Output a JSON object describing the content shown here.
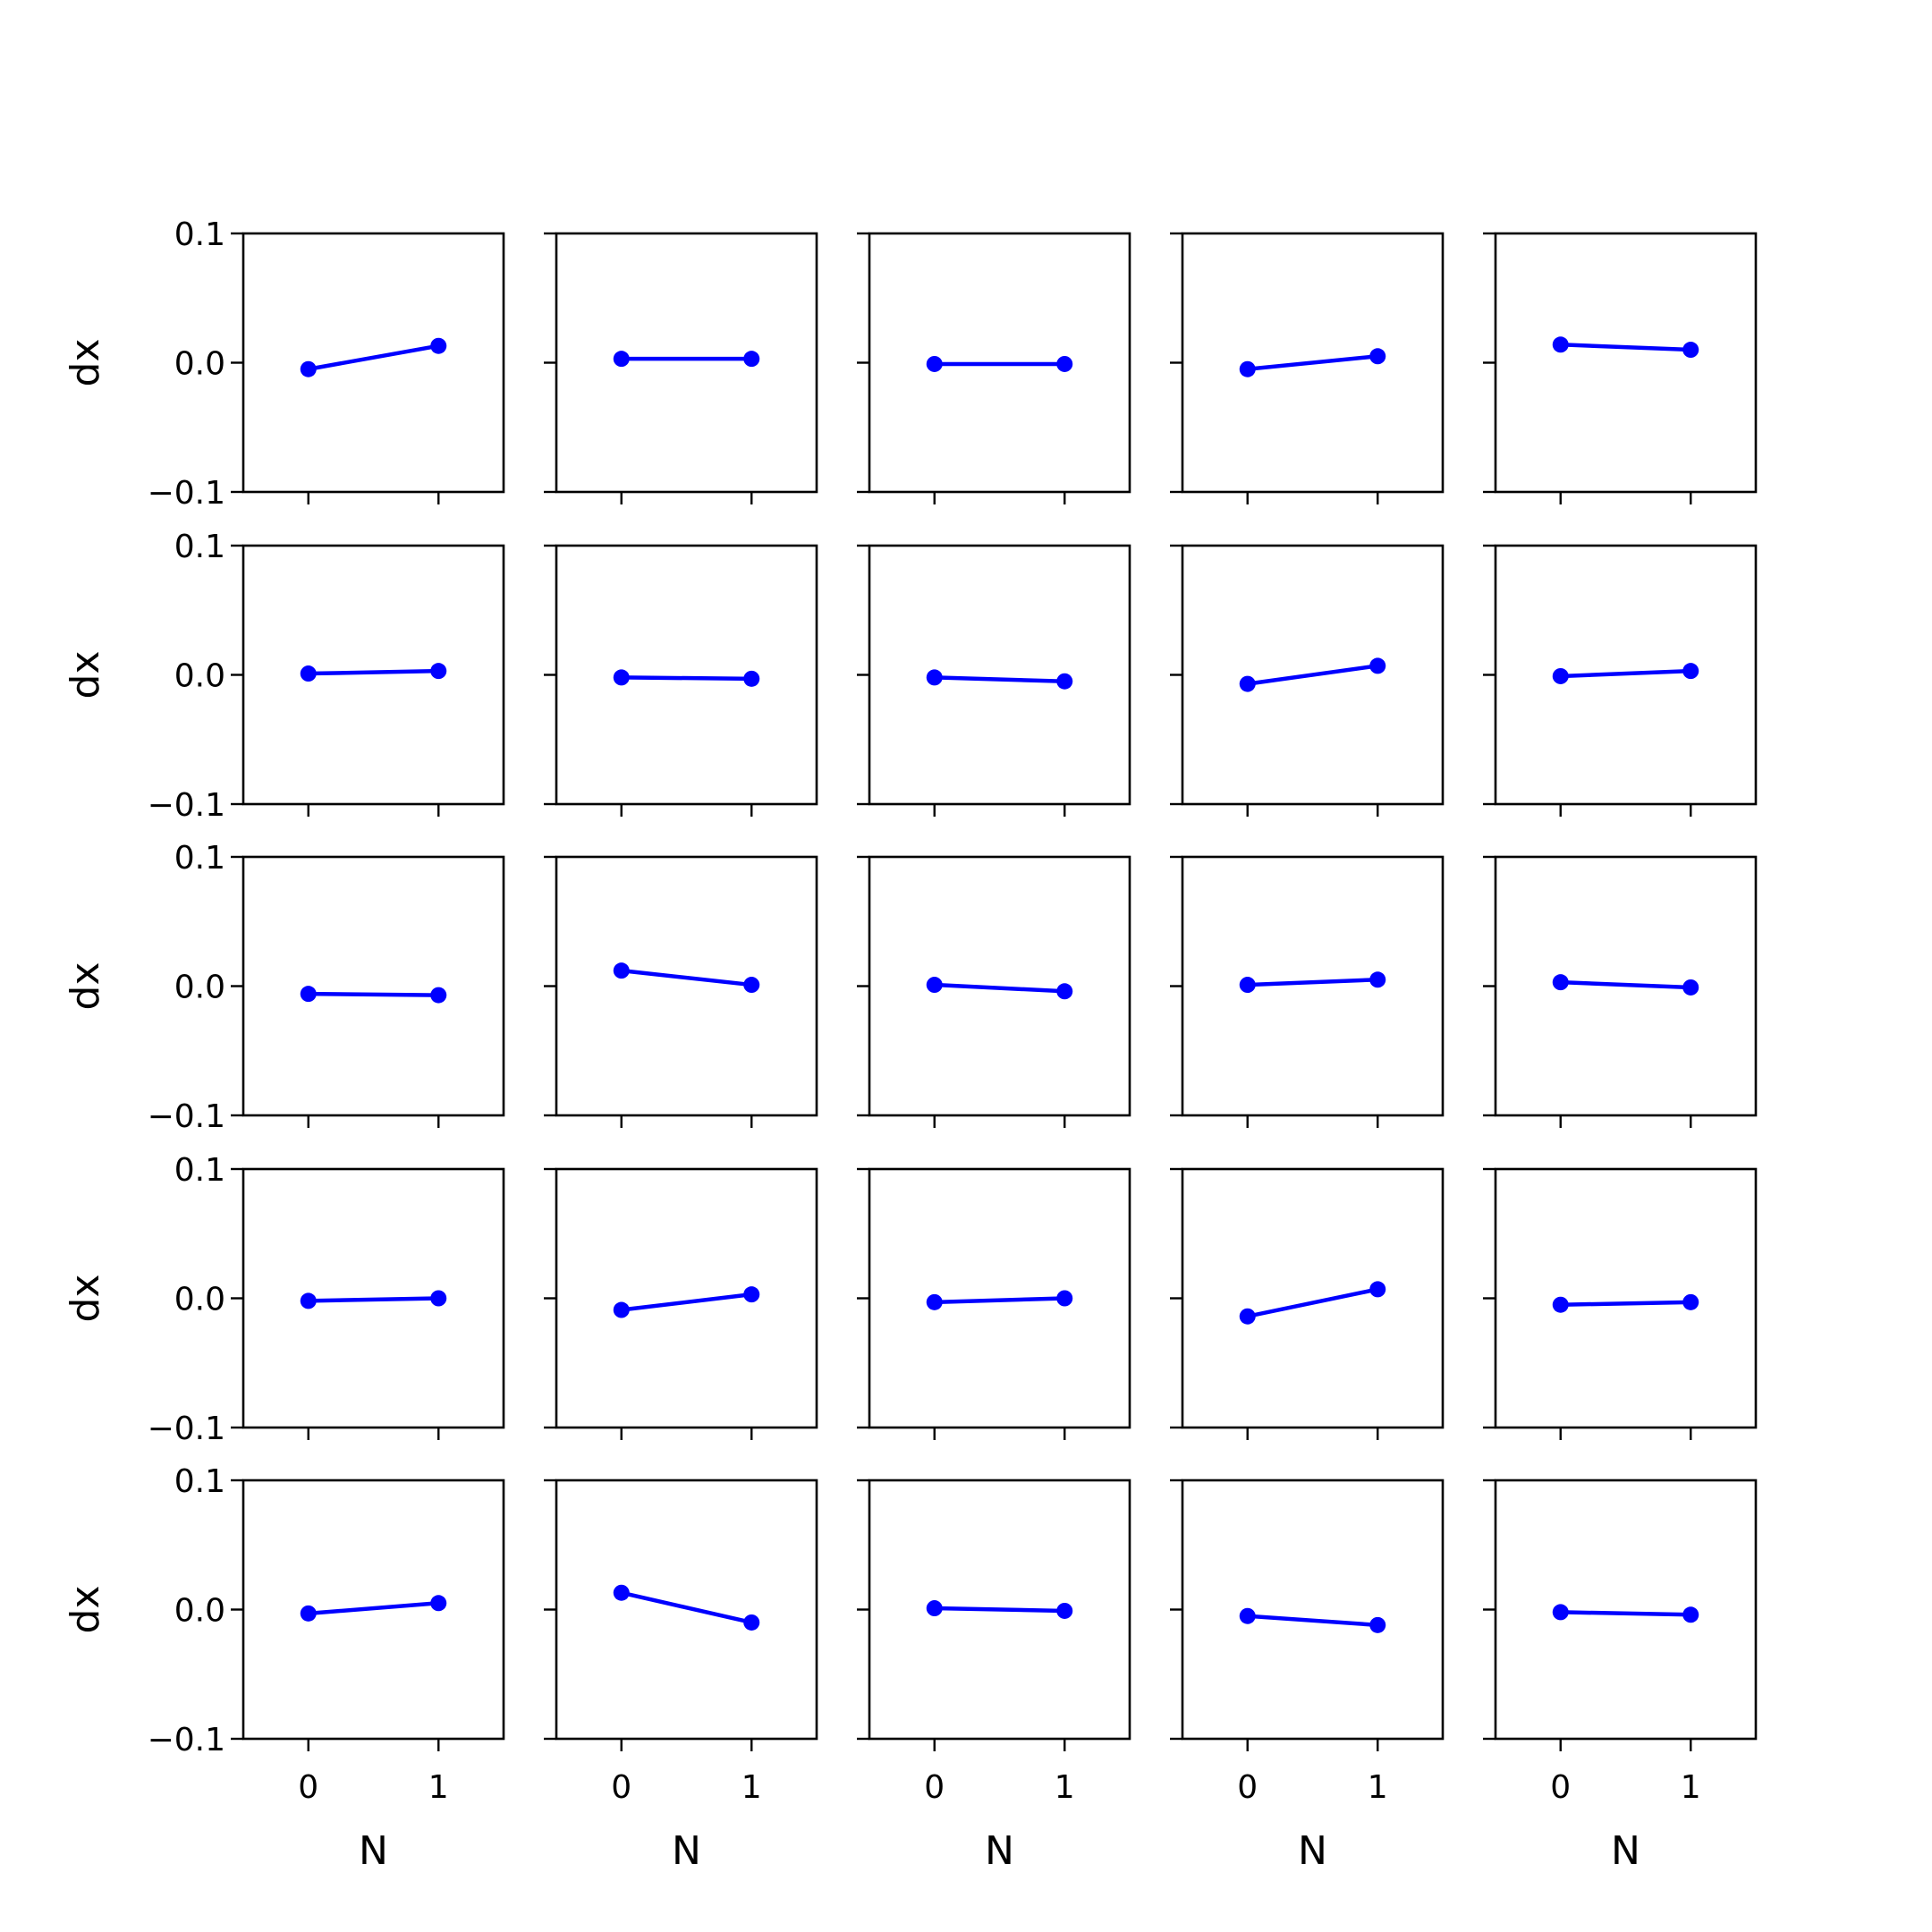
{
  "chart_data": {
    "type": "line",
    "layout": {
      "rows": 5,
      "cols": 5
    },
    "line_color": "#0000ff",
    "xlabel": "N",
    "ylabel": "dx",
    "x": [
      0,
      1
    ],
    "xticks": [
      "0",
      "1"
    ],
    "yticks": [
      "0.1",
      "0.0",
      "−0.1"
    ],
    "ylim": [
      -0.1,
      0.1
    ],
    "xlim": [
      -0.5,
      1.5
    ],
    "grid": false,
    "sharey": true,
    "sharex": true,
    "panels": [
      {
        "values": [
          -0.005,
          0.013
        ]
      },
      {
        "values": [
          0.003,
          0.003
        ]
      },
      {
        "values": [
          -0.001,
          -0.001
        ]
      },
      {
        "values": [
          -0.005,
          0.005
        ]
      },
      {
        "values": [
          0.014,
          0.01
        ]
      },
      {
        "values": [
          0.001,
          0.003
        ]
      },
      {
        "values": [
          -0.002,
          -0.003
        ]
      },
      {
        "values": [
          -0.002,
          -0.005
        ]
      },
      {
        "values": [
          -0.007,
          0.007
        ]
      },
      {
        "values": [
          -0.001,
          0.003
        ]
      },
      {
        "values": [
          -0.006,
          -0.007
        ]
      },
      {
        "values": [
          0.012,
          0.001
        ]
      },
      {
        "values": [
          0.001,
          -0.004
        ]
      },
      {
        "values": [
          0.001,
          0.005
        ]
      },
      {
        "values": [
          0.003,
          -0.001
        ]
      },
      {
        "values": [
          -0.002,
          0.0
        ]
      },
      {
        "values": [
          -0.009,
          0.003
        ]
      },
      {
        "values": [
          -0.003,
          0.0
        ]
      },
      {
        "values": [
          -0.014,
          0.007
        ]
      },
      {
        "values": [
          -0.005,
          -0.003
        ]
      },
      {
        "values": [
          -0.003,
          0.005
        ]
      },
      {
        "values": [
          0.013,
          -0.01
        ]
      },
      {
        "values": [
          0.001,
          -0.001
        ]
      },
      {
        "values": [
          -0.005,
          -0.012
        ]
      },
      {
        "values": [
          -0.002,
          -0.004
        ]
      }
    ]
  }
}
